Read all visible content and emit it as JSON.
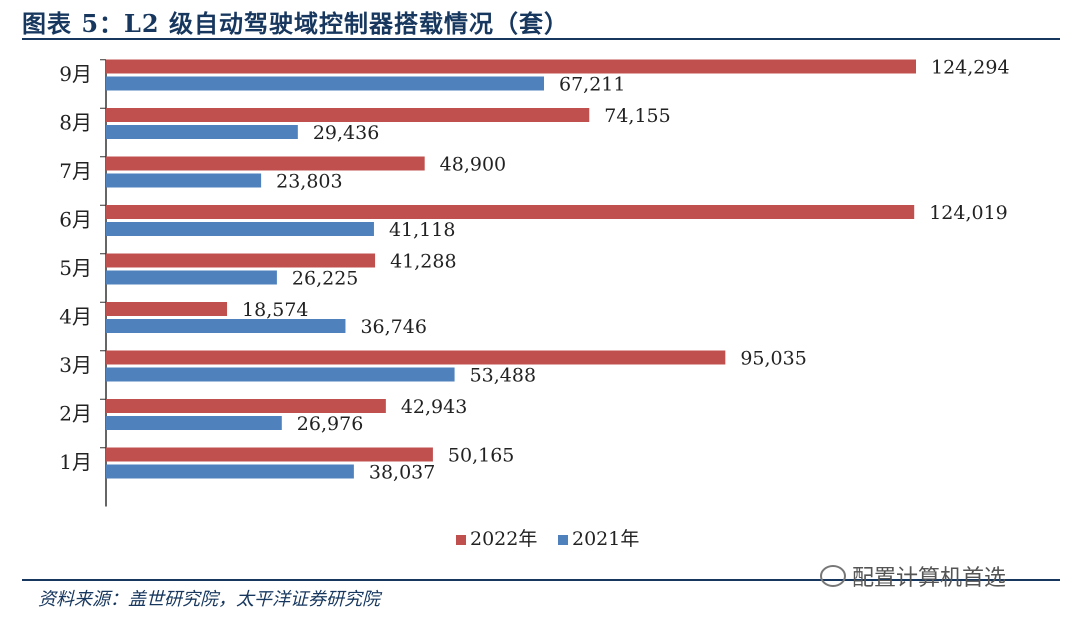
{
  "figure": {
    "title": "图表 5：L2 级自动驾驶域控制器搭载情况（套）",
    "source": "资料来源：盖世研究院，太平洋证券研究院",
    "watermark": "配置计算机首选"
  },
  "colors": {
    "series_2022": "#c0504d",
    "series_2021": "#4f81bd",
    "axis": "#333333",
    "title": "#17375e"
  },
  "chart_data": {
    "type": "bar",
    "orientation": "horizontal",
    "title": "",
    "xlabel": "",
    "ylabel": "",
    "grid": false,
    "legend_position": "bottom",
    "categories": [
      "1月",
      "2月",
      "3月",
      "4月",
      "5月",
      "6月",
      "7月",
      "8月",
      "9月"
    ],
    "series": [
      {
        "name": "2022年",
        "color": "#c0504d",
        "values": [
          50165,
          42943,
          95035,
          18574,
          41288,
          124019,
          48900,
          74155,
          124294
        ],
        "labels": [
          "50,165",
          "42,943",
          "95,035",
          "18,574",
          "41,288",
          "124,019",
          "48,900",
          "74,155",
          "124,294"
        ]
      },
      {
        "name": "2021年",
        "color": "#4f81bd",
        "values": [
          38037,
          26976,
          53488,
          36746,
          26225,
          41118,
          23803,
          29436,
          67211
        ],
        "labels": [
          "38,037",
          "26,976",
          "53,488",
          "36,746",
          "26,225",
          "41,118",
          "23,803",
          "29,436",
          "67,211"
        ]
      }
    ],
    "xlim": [
      0,
      124294
    ]
  }
}
